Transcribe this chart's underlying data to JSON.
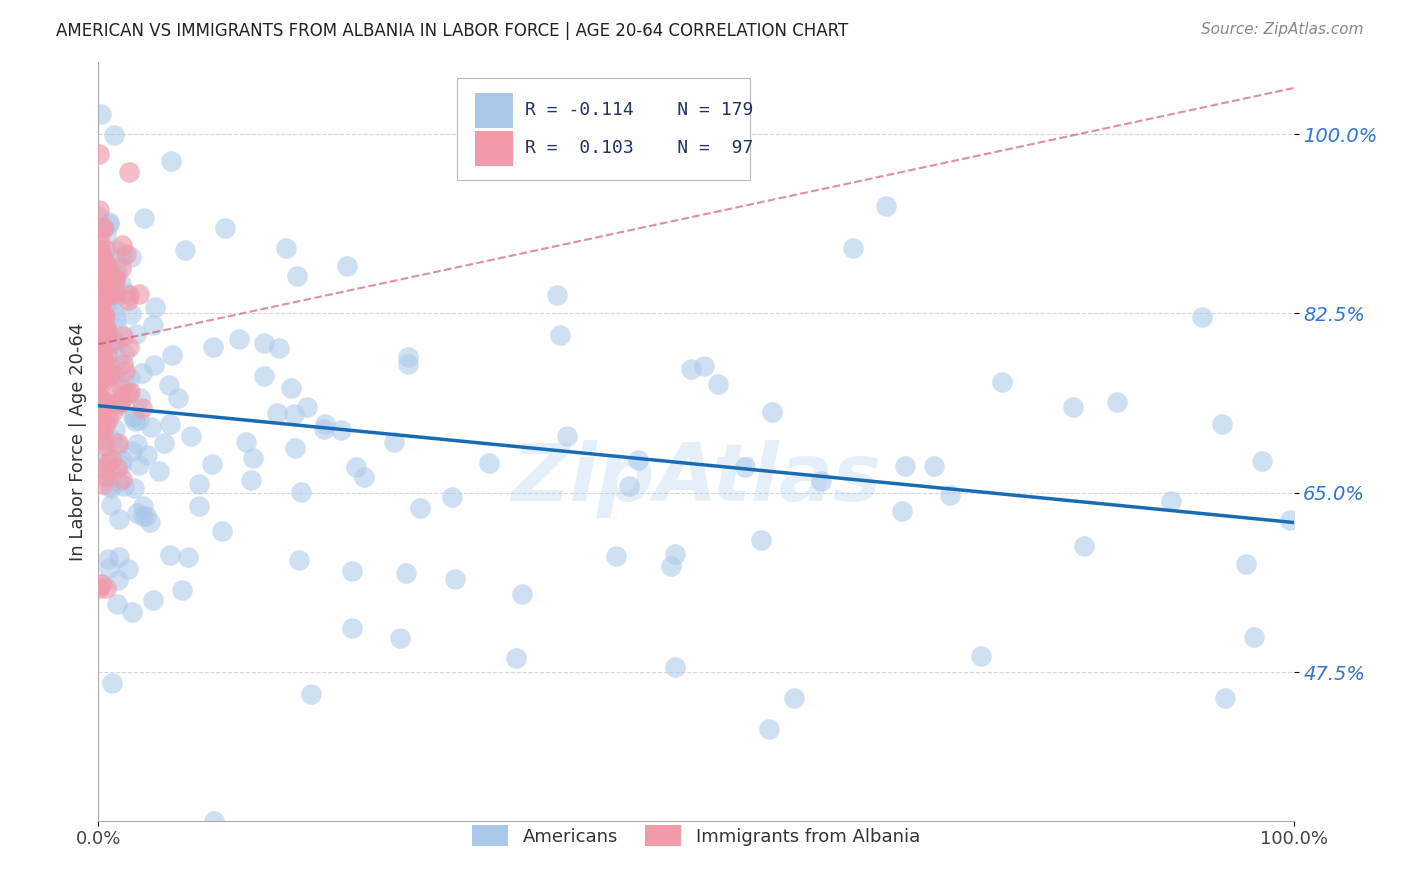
{
  "title": "AMERICAN VS IMMIGRANTS FROM ALBANIA IN LABOR FORCE | AGE 20-64 CORRELATION CHART",
  "source": "Source: ZipAtlas.com",
  "ylabel": "In Labor Force | Age 20-64",
  "xlim": [
    0.0,
    1.0
  ],
  "ylim": [
    0.33,
    1.07
  ],
  "yticks": [
    0.475,
    0.65,
    0.825,
    1.0
  ],
  "ytick_labels": [
    "47.5%",
    "65.0%",
    "82.5%",
    "100.0%"
  ],
  "xtick_labels": [
    "0.0%",
    "100.0%"
  ],
  "xtick_positions": [
    0.0,
    1.0
  ],
  "legend_r_american": "-0.114",
  "legend_n_american": "179",
  "legend_r_albania": "0.103",
  "legend_n_albania": "97",
  "american_color": "#aac8ea",
  "albania_color": "#f09aaa",
  "american_line_color": "#1a6bb5",
  "albania_line_color": "#cc4466",
  "watermark": "ZipAtlas",
  "american_slope": -0.114,
  "american_intercept": 0.735,
  "albania_slope": 0.25,
  "albania_intercept": 0.795,
  "background_color": "#ffffff",
  "grid_color": "#cccccc"
}
